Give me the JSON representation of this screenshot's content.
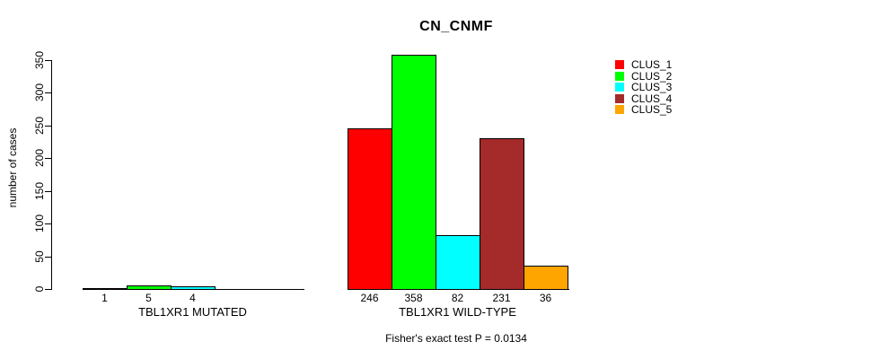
{
  "chart_data": {
    "type": "bar",
    "title": "CN_CNMF",
    "ylabel": "number of cases",
    "ylim": [
      0,
      350
    ],
    "yticks": [
      0,
      50,
      100,
      150,
      200,
      250,
      300,
      350
    ],
    "grid": false,
    "legend_position": "right",
    "categories": [
      "TBL1XR1 MUTATED",
      "TBL1XR1 WILD-TYPE"
    ],
    "series": [
      {
        "name": "CLUS_1",
        "color": "#FF0000",
        "values": [
          1,
          246
        ]
      },
      {
        "name": "CLUS_2",
        "color": "#00FF00",
        "values": [
          5,
          358
        ]
      },
      {
        "name": "CLUS_3",
        "color": "#00FFFF",
        "values": [
          4,
          82
        ]
      },
      {
        "name": "CLUS_4",
        "color": "#A52A2A",
        "values": [
          0,
          231
        ]
      },
      {
        "name": "CLUS_5",
        "color": "#FFA500",
        "values": [
          0,
          36
        ]
      }
    ],
    "value_labels": [
      [
        "1",
        "5",
        "4",
        "",
        ""
      ],
      [
        "246",
        "358",
        "82",
        "231",
        "36"
      ]
    ],
    "annotation": "Fisher's exact test P = 0.0134"
  }
}
